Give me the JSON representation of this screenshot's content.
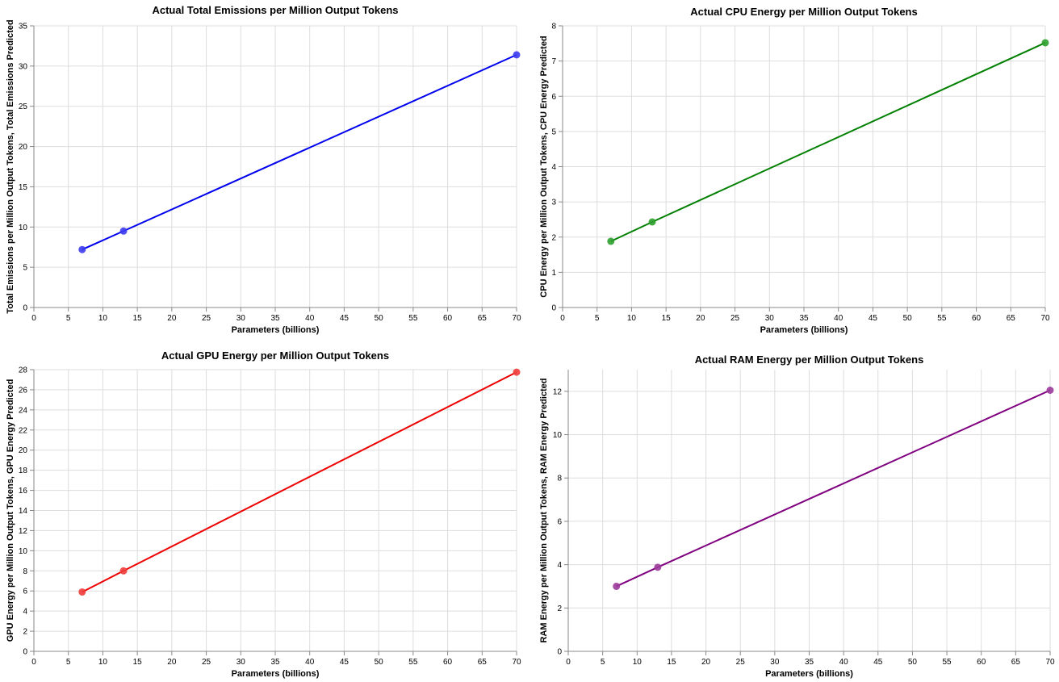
{
  "chart_data": [
    {
      "type": "line",
      "title": "Actual Total Emissions per Million Output Tokens",
      "xlabel": "Parameters (billions)",
      "ylabel": "Total Emissions per Million Output Tokens, Total Emissions Predicted",
      "xlim": [
        0,
        70
      ],
      "ylim": [
        0,
        35
      ],
      "xticks": [
        0,
        5,
        10,
        15,
        20,
        25,
        30,
        35,
        40,
        45,
        50,
        55,
        60,
        65,
        70
      ],
      "yticks": [
        0,
        5,
        10,
        15,
        20,
        25,
        30,
        35
      ],
      "color": "#0000ee",
      "point_color": "#3b3bf0",
      "grid": true,
      "series": [
        {
          "name": "Total Emissions per Million Output Tokens",
          "mark": "point",
          "x": [
            7,
            13,
            70
          ],
          "y": [
            7.2,
            9.5,
            31.4
          ]
        },
        {
          "name": "Total Emissions Predicted",
          "mark": "line",
          "x": [
            7,
            13,
            70
          ],
          "y": [
            7.2,
            9.5,
            31.4
          ]
        }
      ]
    },
    {
      "type": "line",
      "title": "Actual CPU Energy per Million Output Tokens",
      "xlabel": "Parameters (billions)",
      "ylabel": "CPU Energy per Million Output Tokens, CPU Energy Predicted",
      "xlim": [
        0,
        70
      ],
      "ylim": [
        0,
        8
      ],
      "xticks": [
        0,
        5,
        10,
        15,
        20,
        25,
        30,
        35,
        40,
        45,
        50,
        55,
        60,
        65,
        70
      ],
      "yticks": [
        0,
        1,
        2,
        3,
        4,
        5,
        6,
        7,
        8
      ],
      "color": "#008000",
      "point_color": "#2e9e2e",
      "grid": true,
      "series": [
        {
          "name": "CPU Energy per Million Output Tokens",
          "mark": "point",
          "x": [
            7,
            13,
            70
          ],
          "y": [
            1.88,
            2.43,
            7.52
          ]
        },
        {
          "name": "CPU Energy Predicted",
          "mark": "line",
          "x": [
            7,
            13,
            70
          ],
          "y": [
            1.88,
            2.43,
            7.52
          ]
        }
      ]
    },
    {
      "type": "line",
      "title": "Actual GPU Energy per Million Output Tokens",
      "xlabel": "Parameters (billions)",
      "ylabel": "GPU Energy per Million Output Tokens, GPU Energy Predicted",
      "xlim": [
        0,
        70
      ],
      "ylim": [
        0,
        28
      ],
      "xticks": [
        0,
        5,
        10,
        15,
        20,
        25,
        30,
        35,
        40,
        45,
        50,
        55,
        60,
        65,
        70
      ],
      "yticks": [
        0,
        2,
        4,
        6,
        8,
        10,
        12,
        14,
        16,
        18,
        20,
        22,
        24,
        26,
        28
      ],
      "color": "#ee0000",
      "point_color": "#f03b3b",
      "grid": true,
      "series": [
        {
          "name": "GPU Energy per Million Output Tokens",
          "mark": "point",
          "x": [
            7,
            13,
            70
          ],
          "y": [
            5.9,
            8.0,
            27.75
          ]
        },
        {
          "name": "GPU Energy Predicted",
          "mark": "line",
          "x": [
            7,
            13,
            70
          ],
          "y": [
            5.9,
            8.0,
            27.75
          ]
        }
      ]
    },
    {
      "type": "line",
      "title": "Actual RAM Energy per Million Output Tokens",
      "xlabel": "Parameters (billions)",
      "ylabel": "RAM Energy per Million Output Tokens, RAM Energy Predicted",
      "xlim": [
        0,
        70
      ],
      "ylim": [
        0,
        13
      ],
      "xticks": [
        0,
        5,
        10,
        15,
        20,
        25,
        30,
        35,
        40,
        45,
        50,
        55,
        60,
        65,
        70
      ],
      "yticks": [
        0,
        2,
        4,
        6,
        8,
        10,
        12
      ],
      "color": "#800080",
      "point_color": "#9b3b9b",
      "grid": true,
      "series": [
        {
          "name": "RAM Energy per Million Output Tokens",
          "mark": "point",
          "x": [
            7,
            13,
            70
          ],
          "y": [
            3.0,
            3.88,
            12.05
          ]
        },
        {
          "name": "RAM Energy Predicted",
          "mark": "line",
          "x": [
            7,
            13,
            70
          ],
          "y": [
            3.0,
            3.88,
            12.05
          ]
        }
      ]
    }
  ]
}
